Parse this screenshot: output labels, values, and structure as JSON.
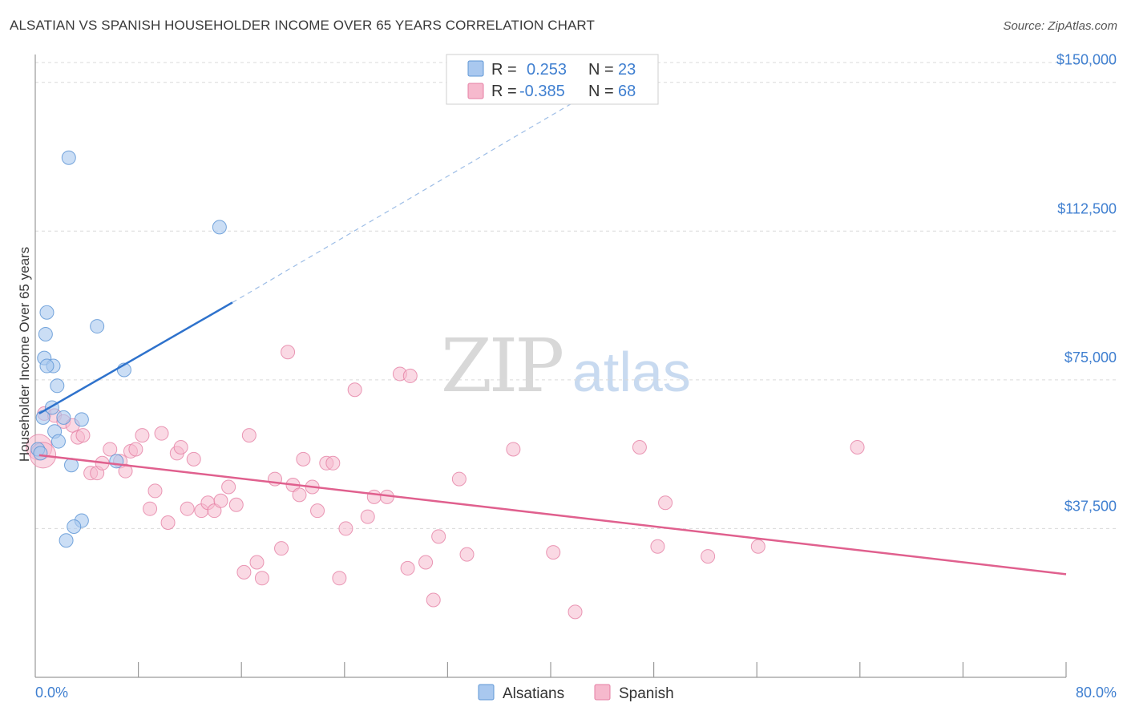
{
  "title": "ALSATIAN VS SPANISH HOUSEHOLDER INCOME OVER 65 YEARS CORRELATION CHART",
  "source": "Source: ZipAtlas.com",
  "watermark": {
    "zip": "ZIP",
    "atlas": "atlas"
  },
  "legend_top": {
    "rows": [
      {
        "r_label": "R =",
        "r_value": "0.253",
        "n_label": "N =",
        "n_value": "23"
      },
      {
        "r_label": "R =",
        "r_value": "-0.385",
        "n_label": "N =",
        "n_value": "68"
      }
    ]
  },
  "legend_bottom": {
    "items": [
      {
        "label": "Alsatians"
      },
      {
        "label": "Spanish"
      }
    ]
  },
  "colors": {
    "alsatian_fill": "#a9c8ef",
    "alsatian_stroke": "#5f97d6",
    "alsatian_line": "#2e72cc",
    "spanish_fill": "#f6b9cd",
    "spanish_stroke": "#e57fa4",
    "spanish_line": "#e0608e",
    "tick_label": "#3f7fd0",
    "grid": "#d9d9d9"
  },
  "chart_data": {
    "type": "scatter",
    "title": "ALSATIAN VS SPANISH HOUSEHOLDER INCOME OVER 65 YEARS CORRELATION CHART",
    "xlabel": "",
    "ylabel": "Householder Income Over 65 years",
    "xlim": [
      0,
      80
    ],
    "ylim": [
      0,
      155000
    ],
    "x_tick_labels": [
      {
        "value": 0,
        "label": "0.0%"
      },
      {
        "value": 80,
        "label": "80.0%"
      }
    ],
    "y_ticks": [
      {
        "value": 37500,
        "label": "$37,500"
      },
      {
        "value": 75000,
        "label": "$75,000"
      },
      {
        "value": 112500,
        "label": "$112,500"
      },
      {
        "value": 150000,
        "label": "$150,000"
      }
    ],
    "x_minor_ticks": [
      8,
      16,
      24,
      32,
      40,
      48,
      56,
      64,
      72,
      80
    ],
    "grid": true,
    "legend_placement": "top-center",
    "series": [
      {
        "name": "Alsatians",
        "R": 0.253,
        "N": 23,
        "points": [
          [
            2.6,
            131000
          ],
          [
            14.3,
            113500
          ],
          [
            0.9,
            92000
          ],
          [
            0.8,
            86500
          ],
          [
            4.8,
            88500
          ],
          [
            0.7,
            80500
          ],
          [
            1.4,
            78500
          ],
          [
            0.9,
            78500
          ],
          [
            6.9,
            77500
          ],
          [
            1.7,
            73500
          ],
          [
            1.3,
            68000
          ],
          [
            0.6,
            65500
          ],
          [
            2.2,
            65500
          ],
          [
            3.6,
            65000
          ],
          [
            1.5,
            62000
          ],
          [
            1.8,
            59500
          ],
          [
            0.2,
            57500
          ],
          [
            2.8,
            53500
          ],
          [
            6.3,
            54500
          ],
          [
            3.6,
            39500
          ],
          [
            3.0,
            38000
          ],
          [
            2.4,
            34500
          ],
          [
            0.4,
            56500
          ]
        ],
        "trend": {
          "x1": 0.3,
          "y1": 66500,
          "x2": 15.3,
          "y2": 94500,
          "dash_x2": 46.0,
          "dash_y2": 153000
        }
      },
      {
        "name": "Spanish",
        "R": -0.385,
        "N": 68,
        "points": [
          [
            0.3,
            58000
          ],
          [
            0.7,
            66500
          ],
          [
            1.5,
            66000
          ],
          [
            2.2,
            64500
          ],
          [
            2.9,
            63500
          ],
          [
            3.3,
            60500
          ],
          [
            3.7,
            61000
          ],
          [
            4.3,
            51500
          ],
          [
            4.8,
            51500
          ],
          [
            5.2,
            54000
          ],
          [
            5.8,
            57500
          ],
          [
            6.6,
            54500
          ],
          [
            7.0,
            52000
          ],
          [
            7.4,
            57000
          ],
          [
            7.8,
            57500
          ],
          [
            8.3,
            61000
          ],
          [
            8.9,
            42500
          ],
          [
            9.3,
            47000
          ],
          [
            9.8,
            61500
          ],
          [
            10.3,
            39000
          ],
          [
            11.0,
            56500
          ],
          [
            11.3,
            58000
          ],
          [
            11.8,
            42500
          ],
          [
            12.3,
            55000
          ],
          [
            12.9,
            42000
          ],
          [
            13.4,
            44000
          ],
          [
            13.9,
            42000
          ],
          [
            14.4,
            44500
          ],
          [
            15.0,
            48000
          ],
          [
            15.6,
            43500
          ],
          [
            16.2,
            26500
          ],
          [
            16.6,
            61000
          ],
          [
            17.2,
            29000
          ],
          [
            17.6,
            25000
          ],
          [
            18.6,
            50000
          ],
          [
            19.1,
            32500
          ],
          [
            19.6,
            82000
          ],
          [
            20.0,
            48500
          ],
          [
            20.5,
            46000
          ],
          [
            20.8,
            55000
          ],
          [
            21.5,
            48000
          ],
          [
            21.9,
            42000
          ],
          [
            22.6,
            54000
          ],
          [
            23.1,
            54000
          ],
          [
            23.6,
            25000
          ],
          [
            24.1,
            37500
          ],
          [
            24.8,
            72500
          ],
          [
            25.8,
            40500
          ],
          [
            26.3,
            45500
          ],
          [
            27.3,
            45500
          ],
          [
            28.3,
            76500
          ],
          [
            28.9,
            27500
          ],
          [
            29.1,
            76000
          ],
          [
            30.3,
            29000
          ],
          [
            30.9,
            19500
          ],
          [
            31.3,
            35500
          ],
          [
            32.9,
            50000
          ],
          [
            33.5,
            31000
          ],
          [
            37.1,
            57500
          ],
          [
            40.2,
            31500
          ],
          [
            41.9,
            16500
          ],
          [
            46.9,
            58000
          ],
          [
            48.3,
            33000
          ],
          [
            48.9,
            44000
          ],
          [
            52.2,
            30500
          ],
          [
            56.1,
            33000
          ],
          [
            63.8,
            58000
          ],
          [
            0.6,
            56000
          ]
        ],
        "trend": {
          "x1": 0.3,
          "y1": 56000,
          "x2": 80,
          "y2": 26000
        }
      }
    ]
  }
}
